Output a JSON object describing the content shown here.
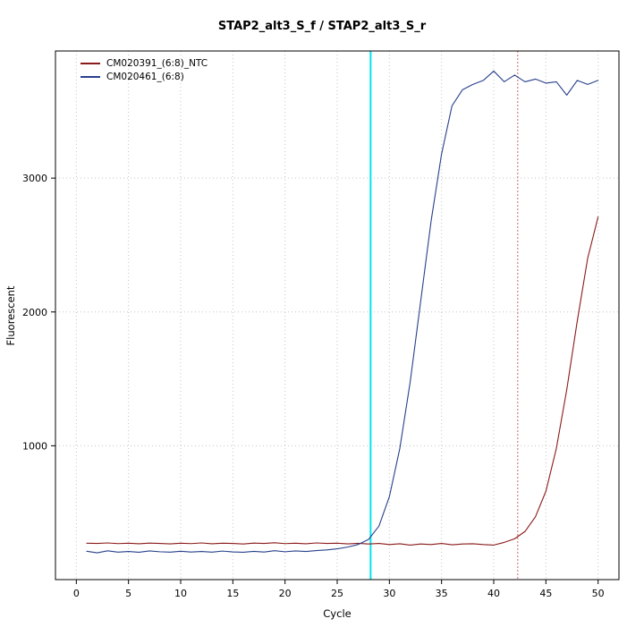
{
  "title": "STAP2_alt3_S_f / STAP2_alt3_S_r",
  "chart_data": {
    "type": "line",
    "title": "STAP2_alt3_S_f / STAP2_alt3_S_r",
    "xlabel": "Cycle",
    "ylabel": "Fluorescent",
    "xlim": [
      -2,
      52
    ],
    "ylim": [
      0,
      3950
    ],
    "x_ticks": [
      0,
      5,
      10,
      15,
      20,
      25,
      30,
      35,
      40,
      45,
      50
    ],
    "y_ticks": [
      1000,
      2000,
      3000
    ],
    "grid": "dotted",
    "grid_color": "#c4c4c4",
    "legend_position": "top-left",
    "x": [
      1,
      2,
      3,
      4,
      5,
      6,
      7,
      8,
      9,
      10,
      11,
      12,
      13,
      14,
      15,
      16,
      17,
      18,
      19,
      20,
      21,
      22,
      23,
      24,
      25,
      26,
      27,
      28,
      29,
      30,
      31,
      32,
      33,
      34,
      35,
      36,
      37,
      38,
      39,
      40,
      41,
      42,
      43,
      44,
      45,
      46,
      47,
      48,
      49,
      50
    ],
    "series": [
      {
        "name": "CM020391_(6:8)_NTC",
        "color": "#8b1a1a",
        "values": [
          272,
          270,
          274,
          269,
          272,
          268,
          273,
          270,
          267,
          272,
          269,
          274,
          268,
          272,
          270,
          266,
          273,
          270,
          275,
          269,
          272,
          268,
          274,
          270,
          272,
          267,
          271,
          266,
          270,
          262,
          268,
          258,
          266,
          262,
          270,
          260,
          266,
          268,
          262,
          258,
          278,
          305,
          360,
          470,
          660,
          980,
          1420,
          1930,
          2400,
          2710
        ]
      },
      {
        "name": "CM020461_(6:8)",
        "color": "#27408b",
        "values": [
          212,
          200,
          215,
          205,
          210,
          204,
          214,
          208,
          205,
          212,
          206,
          210,
          205,
          213,
          207,
          204,
          211,
          206,
          216,
          208,
          214,
          210,
          217,
          222,
          230,
          243,
          262,
          300,
          400,
          620,
          980,
          1480,
          2080,
          2680,
          3180,
          3540,
          3660,
          3700,
          3730,
          3800,
          3720,
          3770,
          3720,
          3740,
          3710,
          3720,
          3620,
          3730,
          3700,
          3730
        ]
      }
    ],
    "vlines": [
      {
        "name": "threshold-cycle-line",
        "x": 28.2,
        "color": "#00e5ee",
        "style": "solid",
        "width": 2
      },
      {
        "name": "ct-marker-line",
        "x": 42.3,
        "color": "#cd6666",
        "style": "dotted",
        "width": 1
      }
    ]
  }
}
